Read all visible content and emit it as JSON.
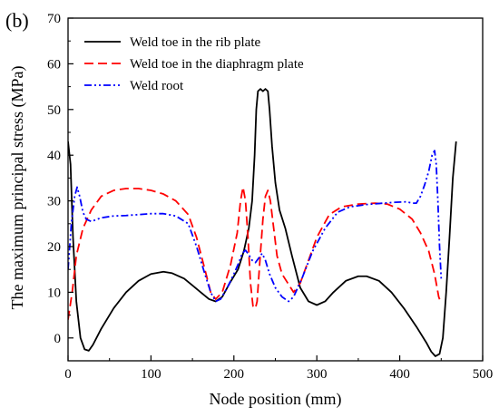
{
  "chart_data": {
    "type": "line",
    "panel_label": "(b)",
    "xlabel": "Node position (mm)",
    "ylabel": "The  maximum principal stress (MPa)",
    "xlim": [
      0,
      500
    ],
    "ylim": [
      -5,
      70
    ],
    "xticks": [
      0,
      100,
      200,
      300,
      400,
      500
    ],
    "yticks": [
      0,
      10,
      20,
      30,
      40,
      50,
      60,
      70
    ],
    "grid": false,
    "legend_position": "top-left",
    "series": [
      {
        "name": "Weld toe in the rib plate",
        "color": "#000000",
        "dash": "solid",
        "points": [
          [
            0,
            43
          ],
          [
            3,
            38
          ],
          [
            6,
            22
          ],
          [
            10,
            8
          ],
          [
            15,
            0
          ],
          [
            20,
            -2.5
          ],
          [
            25,
            -2.8
          ],
          [
            30,
            -1.5
          ],
          [
            40,
            2
          ],
          [
            55,
            6.5
          ],
          [
            70,
            10
          ],
          [
            85,
            12.5
          ],
          [
            100,
            14
          ],
          [
            115,
            14.5
          ],
          [
            125,
            14.2
          ],
          [
            140,
            13
          ],
          [
            150,
            11.5
          ],
          [
            160,
            10
          ],
          [
            170,
            8.5
          ],
          [
            178,
            8
          ],
          [
            186,
            9
          ],
          [
            195,
            12
          ],
          [
            205,
            15
          ],
          [
            212,
            19
          ],
          [
            218,
            24
          ],
          [
            222,
            30
          ],
          [
            225,
            40
          ],
          [
            227,
            50
          ],
          [
            229,
            54
          ],
          [
            232,
            54.5
          ],
          [
            235,
            54
          ],
          [
            238,
            54.5
          ],
          [
            241,
            54
          ],
          [
            243,
            50
          ],
          [
            246,
            42
          ],
          [
            250,
            34
          ],
          [
            255,
            28
          ],
          [
            262,
            24
          ],
          [
            270,
            18
          ],
          [
            280,
            11
          ],
          [
            290,
            8
          ],
          [
            300,
            7.2
          ],
          [
            310,
            8
          ],
          [
            320,
            10
          ],
          [
            335,
            12.5
          ],
          [
            350,
            13.5
          ],
          [
            360,
            13.5
          ],
          [
            375,
            12.5
          ],
          [
            390,
            10
          ],
          [
            405,
            6.5
          ],
          [
            420,
            2.5
          ],
          [
            432,
            -1
          ],
          [
            438,
            -3
          ],
          [
            443,
            -4
          ],
          [
            448,
            -3.5
          ],
          [
            452,
            0
          ],
          [
            456,
            10
          ],
          [
            460,
            22
          ],
          [
            464,
            35
          ],
          [
            468,
            43
          ]
        ]
      },
      {
        "name": "Weld toe in the diaphragm plate",
        "color": "#ff0000",
        "dash": "dashed",
        "points": [
          [
            0,
            4
          ],
          [
            5,
            10
          ],
          [
            10,
            18
          ],
          [
            18,
            24
          ],
          [
            28,
            28
          ],
          [
            40,
            31
          ],
          [
            55,
            32.3
          ],
          [
            70,
            32.7
          ],
          [
            85,
            32.7
          ],
          [
            100,
            32.3
          ],
          [
            115,
            31.5
          ],
          [
            130,
            30
          ],
          [
            145,
            27
          ],
          [
            155,
            22
          ],
          [
            165,
            15
          ],
          [
            172,
            10
          ],
          [
            178,
            8.5
          ],
          [
            186,
            10
          ],
          [
            196,
            16
          ],
          [
            204,
            23
          ],
          [
            208,
            30
          ],
          [
            211,
            33
          ],
          [
            214,
            30
          ],
          [
            217,
            22
          ],
          [
            220,
            12
          ],
          [
            223,
            7
          ],
          [
            226,
            6.5
          ],
          [
            228,
            8
          ],
          [
            231,
            16
          ],
          [
            235,
            26
          ],
          [
            238,
            31
          ],
          [
            241,
            32.3
          ],
          [
            244,
            30
          ],
          [
            248,
            24
          ],
          [
            252,
            18
          ],
          [
            258,
            14
          ],
          [
            265,
            12
          ],
          [
            272,
            10
          ],
          [
            280,
            12
          ],
          [
            290,
            17
          ],
          [
            300,
            22
          ],
          [
            315,
            27
          ],
          [
            330,
            28.7
          ],
          [
            350,
            29.3
          ],
          [
            370,
            29.5
          ],
          [
            385,
            29.3
          ],
          [
            400,
            28.2
          ],
          [
            415,
            26
          ],
          [
            425,
            23
          ],
          [
            435,
            19
          ],
          [
            442,
            14
          ],
          [
            447,
            9
          ],
          [
            449,
            8
          ]
        ]
      },
      {
        "name": "Weld root",
        "color": "#0000ff",
        "dash": "dashdotdot",
        "points": [
          [
            0,
            15
          ],
          [
            4,
            25
          ],
          [
            8,
            31
          ],
          [
            11,
            33
          ],
          [
            14,
            31
          ],
          [
            18,
            27.5
          ],
          [
            22,
            26
          ],
          [
            28,
            25.5
          ],
          [
            40,
            26.3
          ],
          [
            55,
            26.7
          ],
          [
            70,
            26.8
          ],
          [
            85,
            27
          ],
          [
            100,
            27.2
          ],
          [
            115,
            27.2
          ],
          [
            130,
            26.7
          ],
          [
            145,
            25
          ],
          [
            155,
            20
          ],
          [
            165,
            14
          ],
          [
            172,
            10
          ],
          [
            178,
            8
          ],
          [
            184,
            8.5
          ],
          [
            192,
            11
          ],
          [
            200,
            14
          ],
          [
            206,
            16.5
          ],
          [
            210,
            18.5
          ],
          [
            214,
            19.2
          ],
          [
            218,
            18.2
          ],
          [
            222,
            17
          ],
          [
            226,
            16.5
          ],
          [
            230,
            17.5
          ],
          [
            234,
            18.5
          ],
          [
            238,
            17
          ],
          [
            243,
            14
          ],
          [
            250,
            11
          ],
          [
            258,
            9
          ],
          [
            266,
            8
          ],
          [
            272,
            9
          ],
          [
            282,
            13
          ],
          [
            295,
            19
          ],
          [
            310,
            24
          ],
          [
            325,
            27.5
          ],
          [
            340,
            28.7
          ],
          [
            360,
            29.2
          ],
          [
            380,
            29.5
          ],
          [
            395,
            29.7
          ],
          [
            408,
            29.8
          ],
          [
            415,
            29.5
          ],
          [
            420,
            29.5
          ],
          [
            425,
            31
          ],
          [
            430,
            33.5
          ],
          [
            435,
            36.5
          ],
          [
            439,
            40
          ],
          [
            442,
            41
          ],
          [
            444,
            38
          ],
          [
            446,
            30
          ],
          [
            448,
            20
          ],
          [
            450,
            13
          ]
        ]
      }
    ]
  }
}
